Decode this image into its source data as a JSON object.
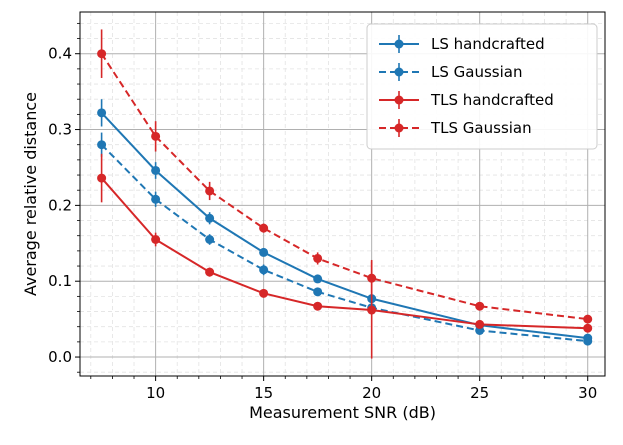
{
  "chart_data": {
    "type": "line",
    "title": "",
    "xlabel": "Measurement SNR (dB)",
    "ylabel": "Average relative distance",
    "xlim": [
      6.5,
      30.8
    ],
    "ylim": [
      -0.025,
      0.455
    ],
    "xticks": [
      10,
      15,
      20,
      25,
      30
    ],
    "xtick_labels": [
      "10",
      "15",
      "20",
      "25",
      "30"
    ],
    "yticks": [
      0.0,
      0.1,
      0.2,
      0.3,
      0.4
    ],
    "ytick_labels": [
      "0.0",
      "0.1",
      "0.2",
      "0.3",
      "0.4"
    ],
    "grid": true,
    "minor_grid": true,
    "legend_position": "top-right",
    "x": [
      7.5,
      10,
      12.5,
      15,
      17.5,
      20,
      25,
      30
    ],
    "series": [
      {
        "name": "LS handcrafted",
        "color": "#1f77b4",
        "linestyle": "solid",
        "values": [
          0.322,
          0.246,
          0.183,
          0.138,
          0.103,
          0.077,
          0.042,
          0.025
        ],
        "errors": [
          0.018,
          0.011,
          0.008,
          0.005,
          0.005,
          0.006,
          0.003,
          0.003
        ]
      },
      {
        "name": "LS Gaussian",
        "color": "#1f77b4",
        "linestyle": "dashed",
        "values": [
          0.28,
          0.208,
          0.155,
          0.115,
          0.086,
          0.065,
          0.035,
          0.021
        ],
        "errors": [
          0.016,
          0.01,
          0.007,
          0.007,
          0.004,
          0.003,
          0.003,
          0.003
        ]
      },
      {
        "name": "TLS handcrafted",
        "color": "#d62728",
        "linestyle": "solid",
        "values": [
          0.236,
          0.155,
          0.112,
          0.084,
          0.067,
          0.062,
          0.043,
          0.038
        ],
        "errors": [
          0.032,
          0.009,
          0.006,
          0.004,
          0.003,
          0.064,
          0.003,
          0.003
        ]
      },
      {
        "name": "TLS Gaussian",
        "color": "#d62728",
        "linestyle": "dashed",
        "values": [
          0.4,
          0.291,
          0.219,
          0.17,
          0.13,
          0.104,
          0.067,
          0.05
        ],
        "errors": [
          0.032,
          0.02,
          0.012,
          0.006,
          0.008,
          0.024,
          0.003,
          0.003
        ]
      }
    ]
  }
}
